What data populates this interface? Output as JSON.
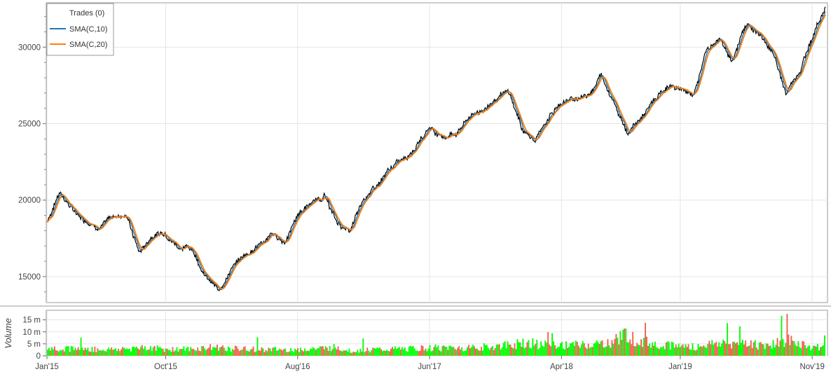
{
  "chart_data": [
    {
      "type": "line",
      "panel": "price",
      "ylim": [
        13300,
        32900
      ],
      "yticks": [
        "15000",
        "20000",
        "25000",
        "30000"
      ],
      "yticks_values": [
        15000,
        20000,
        25000,
        30000
      ],
      "grid": true,
      "legend": {
        "placement": "top-left",
        "entries": [
          {
            "label": "Trades (0)",
            "color": ""
          },
          {
            "label": "SMA(C,10)",
            "color": "#1f77b4"
          },
          {
            "label": "SMA(C,20)",
            "color": "#ff7f0e"
          }
        ]
      },
      "colors": {
        "close": "#000000",
        "sma10": "#1f77b4",
        "sma20": "#ff7f0e"
      },
      "series": [
        {
          "name": "SMA(C,20)",
          "x": [
            "2015-01",
            "2015-02",
            "2015-03",
            "2015-04",
            "2015-05",
            "2015-06",
            "2015-07",
            "2015-08",
            "2015-09",
            "2015-10",
            "2015-11",
            "2015-12",
            "2016-01",
            "2016-02",
            "2016-03",
            "2016-04",
            "2016-05",
            "2016-06",
            "2016-07",
            "2016-08",
            "2016-09",
            "2016-10",
            "2016-11",
            "2016-12",
            "2017-01",
            "2017-02",
            "2017-03",
            "2017-04",
            "2017-05",
            "2017-06",
            "2017-07",
            "2017-08",
            "2017-09",
            "2017-10",
            "2017-11",
            "2017-12",
            "2018-01",
            "2018-02",
            "2018-03",
            "2018-04",
            "2018-05",
            "2018-06",
            "2018-07",
            "2018-08",
            "2018-09",
            "2018-10",
            "2018-11",
            "2018-12",
            "2019-01",
            "2019-02",
            "2019-03",
            "2019-04",
            "2019-05",
            "2019-06",
            "2019-07",
            "2019-08",
            "2019-09",
            "2019-10",
            "2019-11",
            "2019-12"
          ],
          "values": [
            18600,
            20600,
            19300,
            18700,
            18300,
            18900,
            19100,
            16600,
            17700,
            17900,
            17000,
            16900,
            15100,
            14000,
            15600,
            16400,
            17000,
            17700,
            17200,
            19100,
            19800,
            20300,
            18500,
            17900,
            20100,
            20900,
            21900,
            22800,
            23600,
            24800,
            24100,
            24400,
            25400,
            25900,
            26600,
            27000,
            24700,
            23800,
            25400,
            26400,
            26600,
            26900,
            28200,
            26500,
            24400,
            25300,
            26400,
            27400,
            27300,
            26900,
            29800,
            30600,
            29100,
            31600,
            30800,
            29700,
            27000,
            28400,
            30700,
            32600
          ]
        }
      ]
    },
    {
      "type": "bar",
      "panel": "volume",
      "ylabel": "Volume",
      "ylim": [
        0,
        19
      ],
      "yticks": [
        "0",
        "5 m",
        "10 m",
        "15 m"
      ],
      "yticks_values": [
        0,
        5,
        10,
        15
      ],
      "unit": "m",
      "grid": true,
      "colors": {
        "up": "#00ff00",
        "down": "#f0604d"
      },
      "series": [
        {
          "name": "",
          "x": [
            "2015-01",
            "2015-02",
            "2015-03",
            "2015-04",
            "2015-05",
            "2015-06",
            "2015-07",
            "2015-08",
            "2015-09",
            "2015-10",
            "2015-11",
            "2015-12",
            "2016-01",
            "2016-02",
            "2016-03",
            "2016-04",
            "2016-05",
            "2016-06",
            "2016-07",
            "2016-08",
            "2016-09",
            "2016-10",
            "2016-11",
            "2016-12",
            "2017-01",
            "2017-02",
            "2017-03",
            "2017-04",
            "2017-05",
            "2017-06",
            "2017-07",
            "2017-08",
            "2017-09",
            "2017-10",
            "2017-11",
            "2017-12",
            "2018-01",
            "2018-02",
            "2018-03",
            "2018-04",
            "2018-05",
            "2018-06",
            "2018-07",
            "2018-08",
            "2018-09",
            "2018-10",
            "2018-11",
            "2018-12",
            "2019-01",
            "2019-02",
            "2019-03",
            "2019-04",
            "2019-05",
            "2019-06",
            "2019-07",
            "2019-08",
            "2019-09",
            "2019-10",
            "2019-11",
            "2019-12"
          ],
          "values": [
            3.6,
            3.2,
            3.0,
            2.8,
            2.6,
            2.7,
            2.9,
            3.8,
            3.2,
            2.9,
            2.8,
            2.7,
            3.3,
            3.5,
            3.0,
            2.8,
            2.7,
            2.6,
            2.5,
            2.7,
            2.9,
            3.1,
            3.5,
            2.0,
            2.5,
            2.6,
            2.7,
            2.8,
            3.0,
            3.2,
            3.3,
            3.4,
            3.5,
            3.6,
            3.8,
            4.5,
            5.5,
            5.0,
            4.2,
            4.3,
            4.4,
            4.6,
            4.8,
            6.5,
            9.0,
            6.0,
            5.0,
            4.5,
            4.0,
            3.8,
            4.5,
            5.2,
            5.0,
            5.5,
            4.6,
            4.8,
            6.8,
            5.0,
            4.0,
            3.2
          ]
        }
      ]
    }
  ],
  "xticks": [
    "Jan'15",
    "Oct'15",
    "Aug'16",
    "Jun'17",
    "Apr'18",
    "Jan'19",
    "Nov'19"
  ],
  "xticks_months": [
    0,
    9,
    19,
    29,
    39,
    48,
    58
  ]
}
